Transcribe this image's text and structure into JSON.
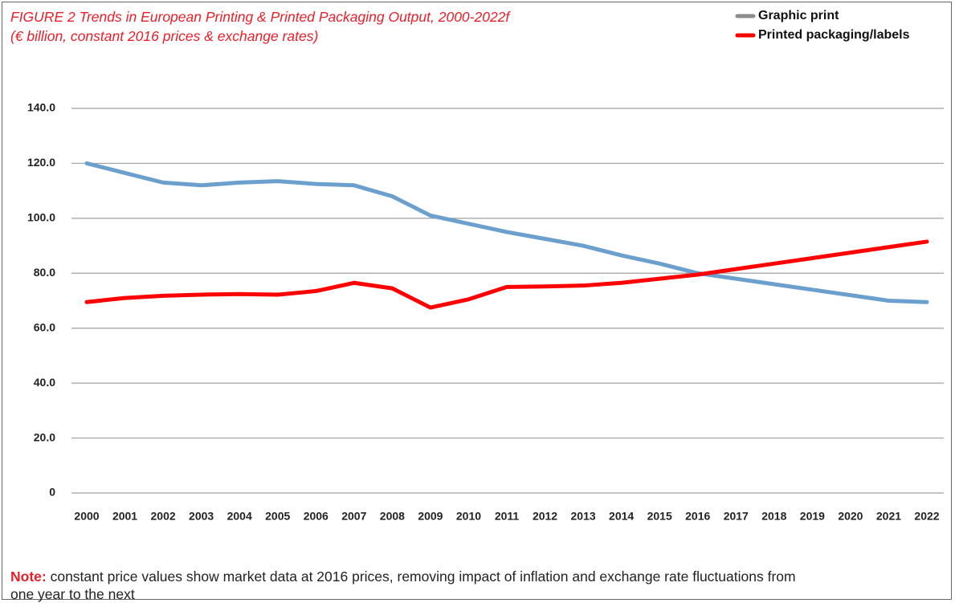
{
  "chart_data": {
    "type": "line",
    "title": "FIGURE 2 Trends in European Printing & Printed Packaging Output, 2000-2022f",
    "subtitle": "(€ billion, constant 2016 prices & exchange rates)",
    "categories": [
      "2000",
      "2001",
      "2002",
      "2003",
      "2004",
      "2005",
      "2006",
      "2007",
      "2008",
      "2009",
      "2010",
      "2011",
      "2012",
      "2013",
      "2014",
      "2015",
      "2016",
      "2017",
      "2018",
      "2019",
      "2020",
      "2021",
      "2022"
    ],
    "series": [
      {
        "name": "Graphic print",
        "color": "#6b9fcd",
        "legend_color": "#8c8c8c",
        "values": [
          120.0,
          116.5,
          113,
          112,
          113,
          113.5,
          112.5,
          112,
          108,
          101,
          98,
          95,
          92.5,
          90,
          86.5,
          83.5,
          80,
          78,
          76,
          74,
          72,
          70,
          69.5
        ]
      },
      {
        "name": "Printed packaging/labels",
        "color": "#ff0000",
        "legend_color": "#ff0000",
        "values": [
          69.5,
          71,
          71.8,
          72.2,
          72.4,
          72.2,
          73.5,
          76.5,
          74.5,
          67.5,
          70.5,
          75,
          75.2,
          75.5,
          76.5,
          78,
          79.5,
          81.5,
          83.5,
          85.5,
          87.5,
          89.5,
          91.5
        ]
      }
    ],
    "ylim": [
      0,
      140
    ],
    "yticks": [
      0,
      {
        "value": 20,
        "label": "20.0"
      },
      {
        "value": 40,
        "label": "40.0"
      },
      {
        "value": 60,
        "label": "60.0"
      },
      {
        "value": 80,
        "label": "80.0"
      },
      {
        "value": 100,
        "label": "100.0"
      },
      {
        "value": 120,
        "label": "120.0"
      },
      {
        "value": 140,
        "label": "140.0"
      }
    ],
    "grid": true,
    "legend_position": "top-right",
    "note": {
      "label": "Note:",
      "text": "constant price values show market data at 2016 prices, removing impact of inflation and exchange rate fluctuations from one year to the next"
    }
  }
}
